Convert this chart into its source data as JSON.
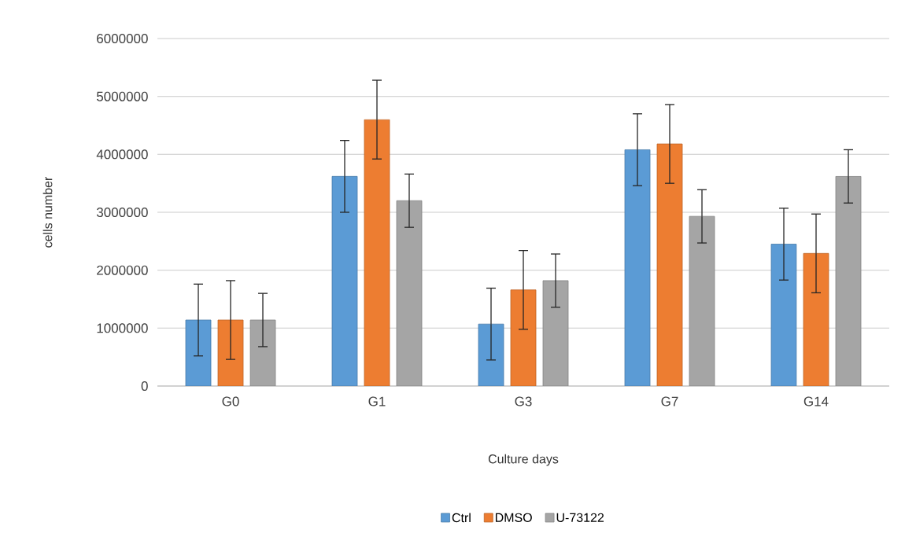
{
  "chart_data": {
    "type": "bar",
    "xlabel": "Culture days",
    "ylabel": "cells number",
    "categories": [
      "G0",
      "G1",
      "G3",
      "G7",
      "G14"
    ],
    "series": [
      {
        "name": "Ctrl",
        "color": "#5b9bd5",
        "values": [
          1140000,
          3620000,
          1070000,
          4080000,
          2450000
        ],
        "errors": [
          620000,
          620000,
          620000,
          620000,
          620000
        ]
      },
      {
        "name": "DMSO",
        "color": "#ed7d31",
        "values": [
          1140000,
          4600000,
          1660000,
          4180000,
          2290000
        ],
        "errors": [
          680000,
          680000,
          680000,
          680000,
          680000
        ]
      },
      {
        "name": "U-73122",
        "color": "#a5a5a5",
        "values": [
          1140000,
          3200000,
          1820000,
          2930000,
          3620000
        ],
        "errors": [
          460000,
          460000,
          460000,
          460000,
          460000
        ]
      }
    ],
    "ylim": [
      0,
      6000000
    ],
    "yticks": [
      0,
      1000000,
      2000000,
      3000000,
      4000000,
      5000000,
      6000000
    ],
    "grid": "y",
    "legend": "bottom"
  }
}
